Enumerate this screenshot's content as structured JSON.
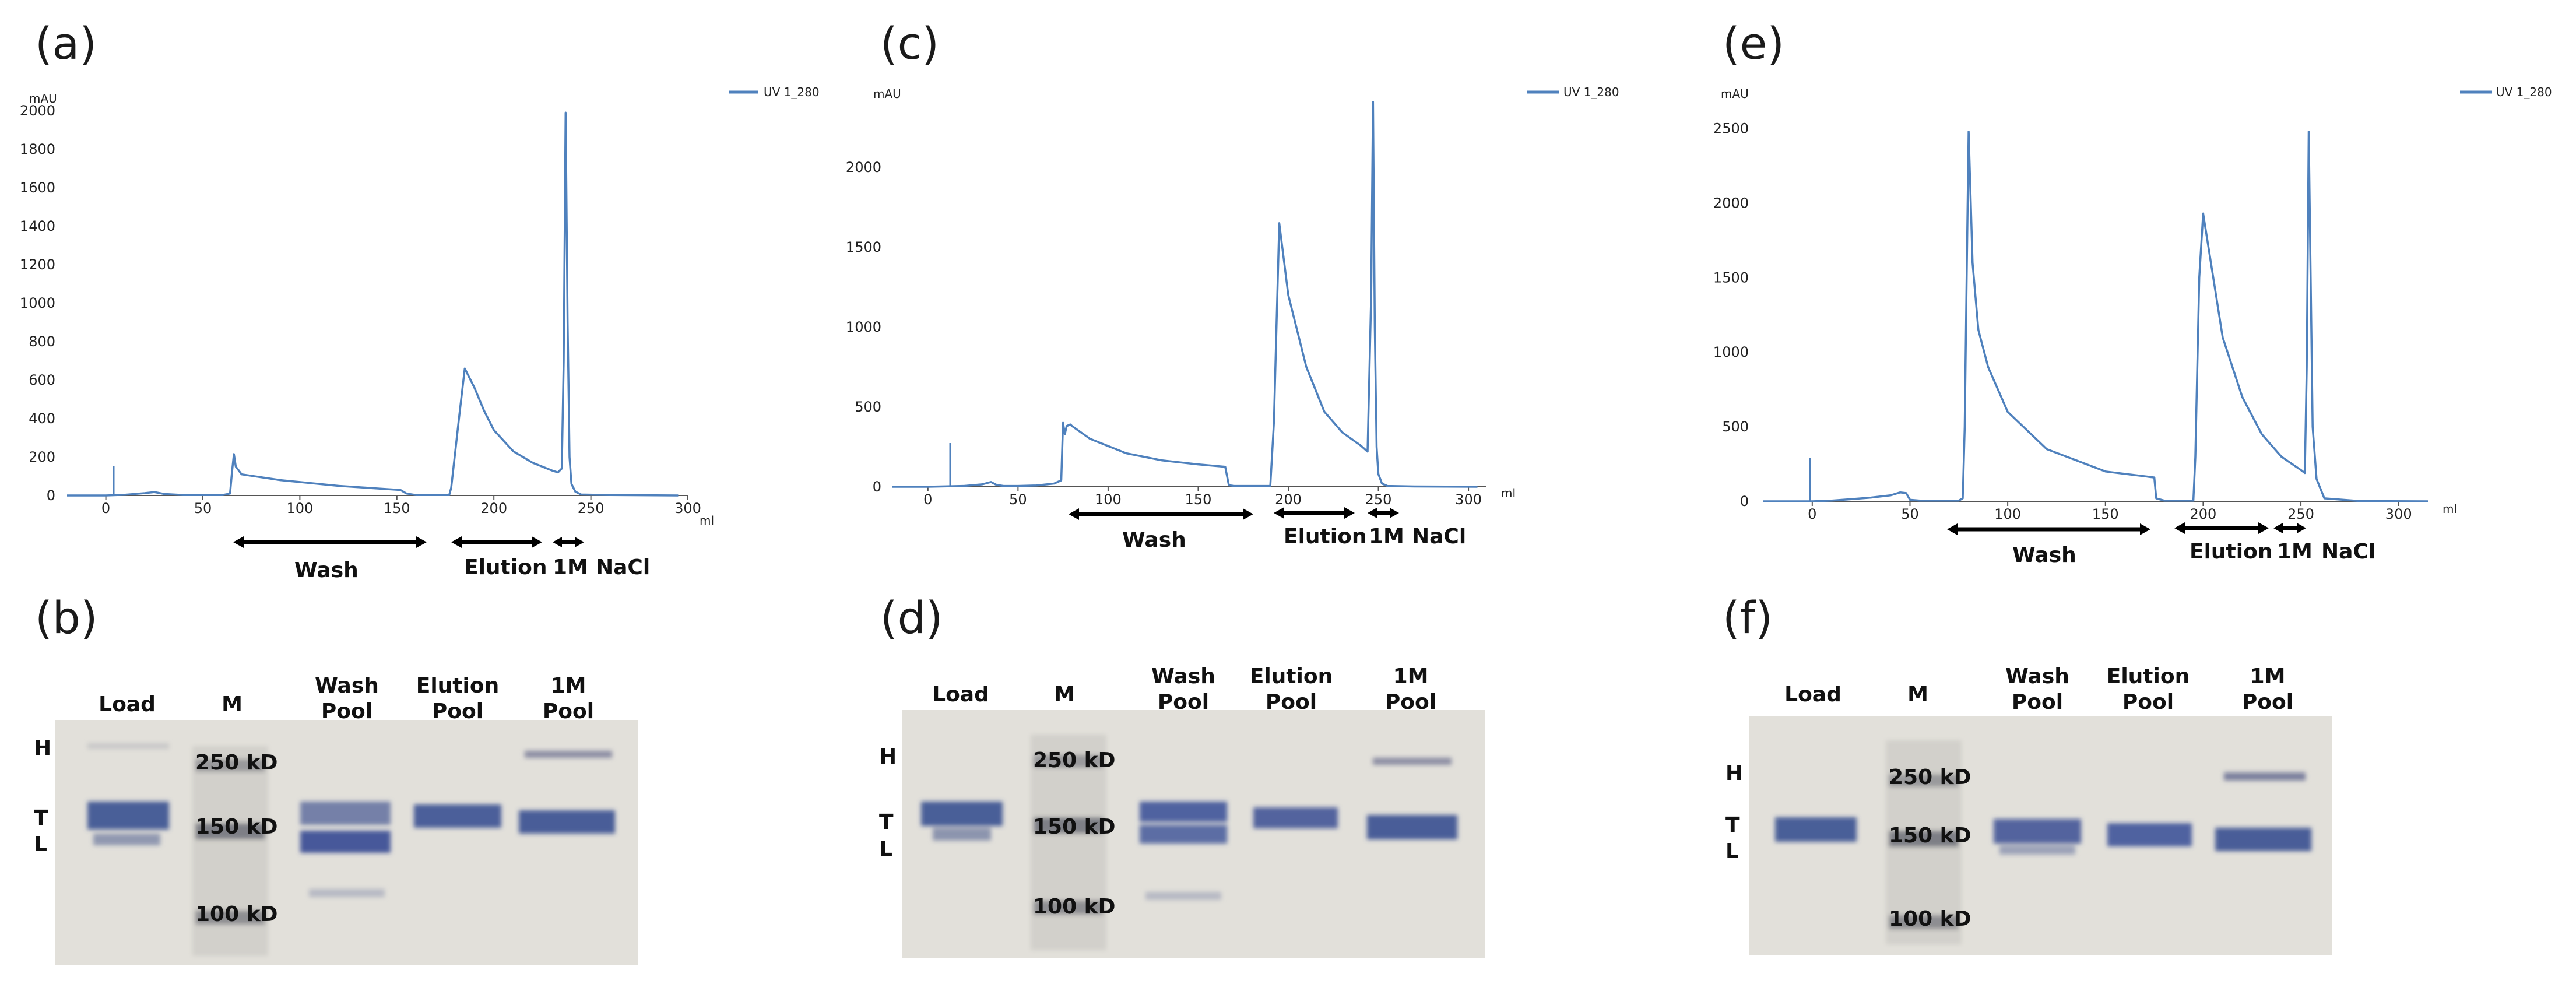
{
  "chromatograms": [
    {
      "panel": "(a)",
      "series": "UV 1_280",
      "ylabel": "mAU",
      "xlabel": "ml",
      "xticks": [
        0,
        50,
        100,
        150,
        200,
        250,
        300
      ],
      "yticks": [
        0,
        200,
        400,
        600,
        800,
        1000,
        1200,
        1400,
        1600,
        1800,
        2000
      ],
      "phases": [
        "Wash",
        "Elution",
        "1M",
        "NaCl"
      ]
    },
    {
      "panel": "(c)",
      "series": "UV 1_280",
      "ylabel": "mAU",
      "xlabel": "ml",
      "xticks": [
        0,
        50,
        100,
        150,
        200,
        250,
        300
      ],
      "yticks": [
        0,
        500,
        1000,
        1500,
        2000
      ],
      "phases": [
        "Wash",
        "Elution",
        "1M",
        "NaCl"
      ]
    },
    {
      "panel": "(e)",
      "series": "UV 1_280",
      "ylabel": "mAU",
      "xlabel": "ml",
      "xticks": [
        0,
        50,
        100,
        150,
        200,
        250,
        300
      ],
      "yticks": [
        0,
        500,
        1000,
        1500,
        2000,
        2500
      ],
      "phases": [
        "Wash",
        "Elution",
        "1M",
        "NaCl"
      ]
    }
  ],
  "gels": [
    {
      "panel": "(b)",
      "lanes": [
        "Load",
        "M",
        "Wash|Pool",
        "Elution|Pool",
        "1M|Pool"
      ],
      "markers": [
        "250 kD",
        "150 kD",
        "100 kD"
      ],
      "side": [
        "H",
        "T",
        "L"
      ]
    },
    {
      "panel": "(d)",
      "lanes": [
        "Load",
        "M",
        "Wash|Pool",
        "Elution|Pool",
        "1M|Pool"
      ],
      "markers": [
        "250 kD",
        "150 kD",
        "100 kD"
      ],
      "side": [
        "H",
        "T",
        "L"
      ]
    },
    {
      "panel": "(f)",
      "lanes": [
        "Load",
        "M",
        "Wash|Pool",
        "Elution|Pool",
        "1M|Pool"
      ],
      "markers": [
        "250 kD",
        "150 kD",
        "100 kD"
      ],
      "side": [
        "H",
        "T",
        "L"
      ]
    }
  ],
  "chart_data": [
    {
      "type": "line",
      "title": "(a)",
      "xlabel": "ml",
      "ylabel": "mAU",
      "xlim": [
        -20,
        300
      ],
      "ylim": [
        0,
        2000
      ],
      "legend": "top-right",
      "series": [
        {
          "name": "UV 1_280",
          "x": [
            -20,
            0,
            10,
            20,
            25,
            30,
            40,
            60,
            64,
            65,
            66,
            67,
            70,
            90,
            120,
            150,
            152,
            155,
            160,
            170,
            177,
            178,
            182,
            185,
            190,
            195,
            200,
            210,
            220,
            230,
            233,
            235,
            236,
            237,
            238,
            239,
            240,
            242,
            245,
            260,
            295
          ],
          "y": [
            0,
            0,
            4,
            12,
            18,
            8,
            2,
            2,
            10,
            120,
            215,
            150,
            110,
            80,
            50,
            30,
            28,
            10,
            2,
            2,
            2,
            40,
            400,
            660,
            560,
            440,
            340,
            230,
            170,
            130,
            120,
            140,
            700,
            1990,
            900,
            200,
            60,
            20,
            5,
            2,
            0
          ]
        }
      ]
    },
    {
      "type": "line",
      "title": "(c)",
      "xlabel": "ml",
      "ylabel": "mAU",
      "xlim": [
        -20,
        310
      ],
      "ylim": [
        0,
        2500
      ],
      "legend": "top-right",
      "series": [
        {
          "name": "UV 1_280",
          "x": [
            -20,
            0,
            20,
            30,
            35,
            38,
            42,
            50,
            60,
            70,
            74,
            75,
            76,
            77,
            79,
            80,
            90,
            110,
            130,
            150,
            165,
            167,
            170,
            190,
            192,
            195,
            200,
            210,
            220,
            230,
            240,
            244,
            246,
            247,
            248,
            249,
            250,
            252,
            255,
            270,
            305
          ],
          "y": [
            0,
            0,
            5,
            15,
            30,
            12,
            5,
            5,
            8,
            20,
            40,
            400,
            330,
            380,
            390,
            380,
            300,
            210,
            165,
            140,
            125,
            10,
            5,
            5,
            400,
            1650,
            1200,
            750,
            470,
            340,
            260,
            220,
            1200,
            2410,
            1000,
            250,
            80,
            20,
            5,
            2,
            0
          ]
        }
      ]
    },
    {
      "type": "line",
      "title": "(e)",
      "xlabel": "ml",
      "ylabel": "mAU",
      "xlim": [
        -25,
        315
      ],
      "ylim": [
        0,
        2600
      ],
      "legend": "top-right",
      "series": [
        {
          "name": "UV 1_280",
          "x": [
            -25,
            0,
            10,
            20,
            30,
            40,
            45,
            48,
            50,
            55,
            65,
            75,
            77,
            78,
            79,
            80,
            82,
            85,
            90,
            100,
            120,
            150,
            175,
            176,
            180,
            195,
            196,
            198,
            200,
            210,
            220,
            230,
            240,
            250,
            252,
            253,
            254,
            255,
            256,
            258,
            262,
            280,
            315
          ],
          "y": [
            0,
            0,
            5,
            15,
            25,
            40,
            60,
            55,
            10,
            5,
            5,
            5,
            20,
            500,
            1500,
            2480,
            1600,
            1150,
            900,
            600,
            350,
            200,
            160,
            20,
            5,
            5,
            300,
            1500,
            1930,
            1100,
            700,
            450,
            300,
            210,
            190,
            900,
            2480,
            1500,
            500,
            150,
            20,
            2,
            0
          ]
        }
      ]
    }
  ]
}
